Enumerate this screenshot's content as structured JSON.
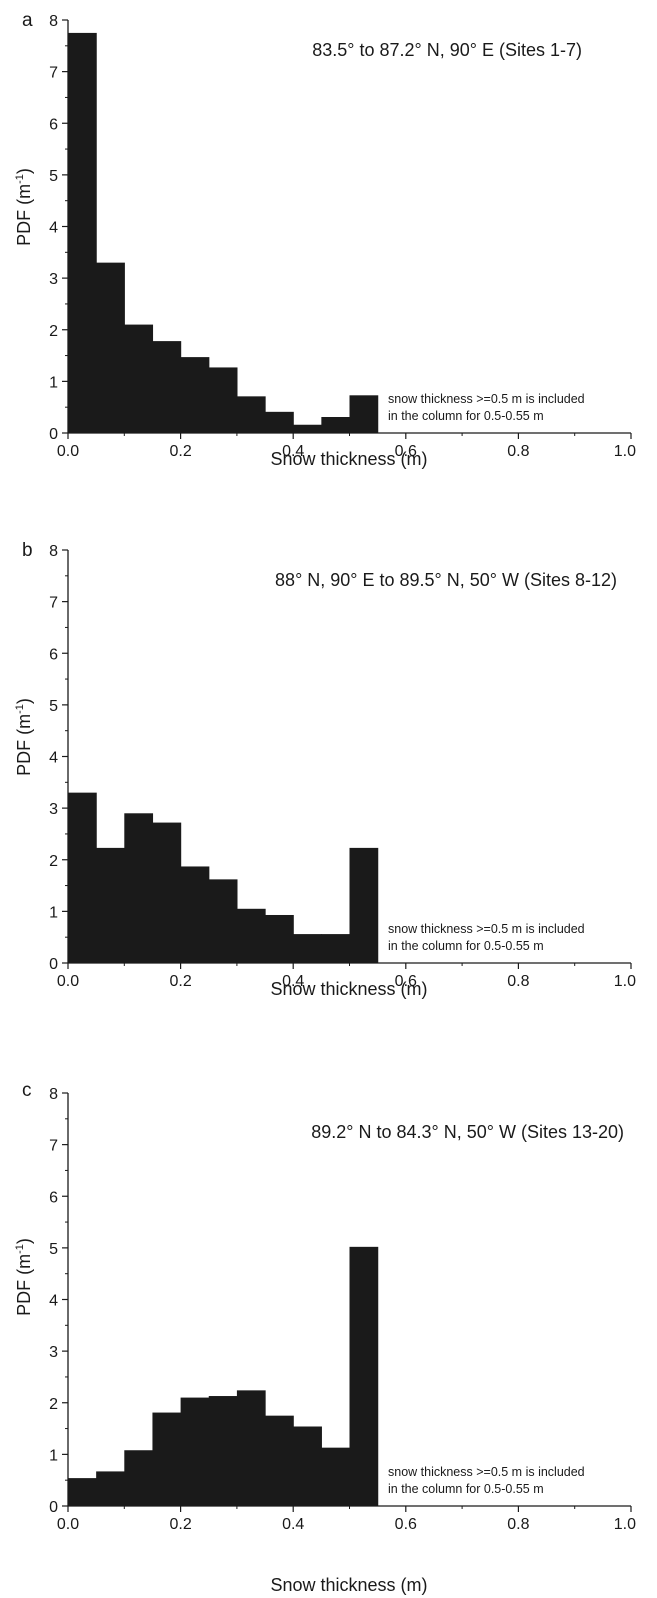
{
  "chart_data": [
    {
      "type": "bar",
      "panel_label": "a",
      "title": "83.5° to 87.2° N, 90° E (Sites 1-7)",
      "xlabel": "Snow thickness (m)",
      "ylabel_main": "PDF (m",
      "ylabel_sup": "-1",
      "ylabel_close": ")",
      "xlim": [
        0,
        1.0
      ],
      "ylim": [
        0,
        8
      ],
      "xticks": [
        "0.0",
        "0.2",
        "0.4",
        "0.6",
        "0.8",
        "1.0"
      ],
      "yticks": [
        "0",
        "1",
        "2",
        "3",
        "4",
        "5",
        "6",
        "7",
        "8"
      ],
      "bin_width": 0.05,
      "bin_starts": [
        0.0,
        0.05,
        0.1,
        0.15,
        0.2,
        0.25,
        0.3,
        0.35,
        0.4,
        0.45,
        0.5
      ],
      "values": [
        7.75,
        3.3,
        2.1,
        1.78,
        1.47,
        1.27,
        0.71,
        0.41,
        0.16,
        0.31,
        0.73
      ],
      "note_line1": "snow thickness >=0.5 m is included",
      "note_line2": "in the column for 0.5-0.55 m",
      "bar_color": "#1a1a1a"
    },
    {
      "type": "bar",
      "panel_label": "b",
      "title": "88° N, 90° E to 89.5° N, 50° W (Sites 8-12)",
      "xlabel": "Snow thickness (m)",
      "ylabel_main": "PDF (m",
      "ylabel_sup": "-1",
      "ylabel_close": ")",
      "xlim": [
        0,
        1.0
      ],
      "ylim": [
        0,
        8
      ],
      "xticks": [
        "0.0",
        "0.2",
        "0.4",
        "0.6",
        "0.8",
        "1.0"
      ],
      "yticks": [
        "0",
        "1",
        "2",
        "3",
        "4",
        "5",
        "6",
        "7",
        "8"
      ],
      "bin_width": 0.05,
      "bin_starts": [
        0.0,
        0.05,
        0.1,
        0.15,
        0.2,
        0.25,
        0.3,
        0.35,
        0.4,
        0.45,
        0.5
      ],
      "values": [
        3.3,
        2.23,
        2.9,
        2.72,
        1.87,
        1.62,
        1.05,
        0.93,
        0.56,
        0.56,
        2.23
      ],
      "note_line1": "snow thickness >=0.5 m is included",
      "note_line2": "in the column for 0.5-0.55 m",
      "bar_color": "#1a1a1a"
    },
    {
      "type": "bar",
      "panel_label": "c",
      "title": "89.2° N to 84.3° N, 50° W (Sites 13-20)",
      "xlabel": "Snow thickness (m)",
      "ylabel_main": "PDF (m",
      "ylabel_sup": "-1",
      "ylabel_close": ")",
      "xlim": [
        0,
        1.0
      ],
      "ylim": [
        0,
        8
      ],
      "xticks": [
        "0.0",
        "0.2",
        "0.4",
        "0.6",
        "0.8",
        "1.0"
      ],
      "yticks": [
        "0",
        "1",
        "2",
        "3",
        "4",
        "5",
        "6",
        "7",
        "8"
      ],
      "bin_width": 0.05,
      "bin_starts": [
        0.0,
        0.05,
        0.1,
        0.15,
        0.2,
        0.25,
        0.3,
        0.35,
        0.4,
        0.45,
        0.5
      ],
      "values": [
        0.54,
        0.67,
        1.08,
        1.81,
        2.1,
        2.13,
        2.24,
        1.75,
        1.54,
        1.13,
        5.02
      ],
      "note_line1": "snow thickness >=0.5 m is included",
      "note_line2": "in the column for 0.5-0.55 m",
      "bar_color": "#1a1a1a"
    }
  ]
}
